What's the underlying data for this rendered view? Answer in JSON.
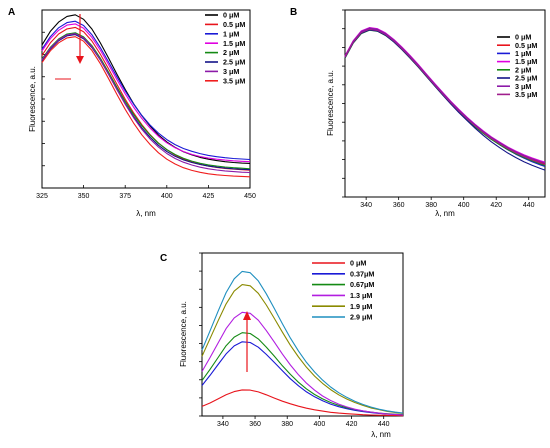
{
  "chart_data": [
    {
      "type": "line",
      "panel": "A",
      "xlabel": "λ, nm",
      "ylabel": "Fluorescence, a.u.",
      "xlim": [
        325,
        450
      ],
      "xticks": [
        325,
        350,
        375,
        400,
        425,
        450
      ],
      "ylim": [
        0,
        1
      ],
      "y_tick_labels": false,
      "legend_position": "top-right",
      "annotation": "arrow pointing down at the emission peak (~345 nm)",
      "x": [
        325,
        330,
        335,
        340,
        345,
        350,
        355,
        360,
        365,
        370,
        375,
        380,
        385,
        390,
        395,
        400,
        405,
        410,
        415,
        420,
        425,
        430,
        435,
        440,
        445,
        450
      ],
      "series": [
        {
          "name": "0 μM",
          "color": "#000000",
          "values": [
            0.804,
            0.88,
            0.932,
            0.964,
            0.973,
            0.948,
            0.893,
            0.817,
            0.73,
            0.64,
            0.554,
            0.475,
            0.406,
            0.347,
            0.298,
            0.259,
            0.228,
            0.204,
            0.186,
            0.172,
            0.162,
            0.154,
            0.148,
            0.143,
            0.14,
            0.138
          ]
        },
        {
          "name": "0.5 μM",
          "color": "#e8141c",
          "values": [
            0.745,
            0.815,
            0.865,
            0.894,
            0.902,
            0.878,
            0.826,
            0.753,
            0.669,
            0.583,
            0.499,
            0.423,
            0.356,
            0.299,
            0.252,
            0.215,
            0.185,
            0.163,
            0.146,
            0.133,
            0.123,
            0.116,
            0.11,
            0.106,
            0.103,
            0.1
          ]
        },
        {
          "name": "1 μM",
          "color": "#1a1ad6",
          "values": [
            0.78,
            0.85,
            0.9,
            0.929,
            0.937,
            0.913,
            0.861,
            0.79,
            0.708,
            0.625,
            0.545,
            0.472,
            0.408,
            0.353,
            0.308,
            0.272,
            0.244,
            0.222,
            0.206,
            0.193,
            0.183,
            0.176,
            0.17,
            0.166,
            0.163,
            0.16
          ]
        },
        {
          "name": "1.5 μM",
          "color": "#e000e0",
          "values": [
            0.77,
            0.838,
            0.886,
            0.915,
            0.922,
            0.898,
            0.846,
            0.775,
            0.693,
            0.609,
            0.529,
            0.455,
            0.391,
            0.336,
            0.29,
            0.254,
            0.226,
            0.205,
            0.189,
            0.177,
            0.168,
            0.162,
            0.157,
            0.153,
            0.15,
            0.148
          ]
        },
        {
          "name": "2 μM",
          "color": "#148a14",
          "values": [
            0.725,
            0.79,
            0.837,
            0.865,
            0.872,
            0.849,
            0.8,
            0.731,
            0.65,
            0.567,
            0.487,
            0.414,
            0.35,
            0.296,
            0.251,
            0.216,
            0.188,
            0.167,
            0.151,
            0.139,
            0.13,
            0.123,
            0.118,
            0.114,
            0.111,
            0.108
          ]
        },
        {
          "name": "2.5 μM",
          "color": "#141488",
          "values": [
            0.715,
            0.78,
            0.827,
            0.855,
            0.862,
            0.838,
            0.789,
            0.72,
            0.639,
            0.555,
            0.475,
            0.402,
            0.338,
            0.284,
            0.24,
            0.205,
            0.178,
            0.158,
            0.143,
            0.132,
            0.123,
            0.117,
            0.112,
            0.108,
            0.105,
            0.103
          ]
        },
        {
          "name": "3 μM",
          "color": "#8c1aa8",
          "values": [
            0.72,
            0.785,
            0.832,
            0.86,
            0.867,
            0.843,
            0.793,
            0.722,
            0.639,
            0.553,
            0.471,
            0.396,
            0.33,
            0.275,
            0.23,
            0.194,
            0.166,
            0.145,
            0.129,
            0.117,
            0.108,
            0.101,
            0.096,
            0.092,
            0.089,
            0.087
          ]
        },
        {
          "name": "3.5 μM",
          "color": "#f01e1e",
          "values": [
            0.705,
            0.77,
            0.816,
            0.843,
            0.85,
            0.825,
            0.773,
            0.7,
            0.614,
            0.526,
            0.442,
            0.366,
            0.299,
            0.244,
            0.198,
            0.162,
            0.135,
            0.114,
            0.099,
            0.088,
            0.08,
            0.074,
            0.07,
            0.067,
            0.065,
            0.063
          ]
        }
      ]
    },
    {
      "type": "line",
      "panel": "B",
      "xlabel": "λ, nm",
      "ylabel": "Fluorescence, a.u.",
      "xlim": [
        327,
        450
      ],
      "xticks": [
        340,
        360,
        380,
        400,
        420,
        440
      ],
      "ylim": [
        0,
        1
      ],
      "y_tick_labels": false,
      "legend_position": "top-right",
      "x": [
        327,
        332,
        337,
        342,
        347,
        352,
        357,
        362,
        367,
        372,
        377,
        382,
        387,
        392,
        397,
        402,
        407,
        412,
        417,
        422,
        427,
        432,
        437,
        442,
        447,
        450
      ],
      "series": [
        {
          "name": "0 μM",
          "color": "#000000",
          "values": [
            0.745,
            0.825,
            0.877,
            0.895,
            0.889,
            0.866,
            0.832,
            0.791,
            0.746,
            0.698,
            0.648,
            0.598,
            0.549,
            0.502,
            0.458,
            0.416,
            0.378,
            0.343,
            0.311,
            0.283,
            0.257,
            0.234,
            0.214,
            0.196,
            0.18,
            0.171
          ]
        },
        {
          "name": "0.5 μM",
          "color": "#e8141c",
          "values": [
            0.75,
            0.83,
            0.883,
            0.9,
            0.895,
            0.872,
            0.838,
            0.797,
            0.752,
            0.704,
            0.654,
            0.604,
            0.555,
            0.508,
            0.464,
            0.422,
            0.384,
            0.349,
            0.317,
            0.289,
            0.263,
            0.24,
            0.22,
            0.202,
            0.186,
            0.177
          ]
        },
        {
          "name": "1 μM",
          "color": "#1a1ad6",
          "values": [
            0.748,
            0.828,
            0.88,
            0.898,
            0.893,
            0.869,
            0.835,
            0.794,
            0.749,
            0.701,
            0.651,
            0.601,
            0.551,
            0.504,
            0.46,
            0.418,
            0.379,
            0.343,
            0.31,
            0.28,
            0.253,
            0.229,
            0.208,
            0.189,
            0.172,
            0.163
          ]
        },
        {
          "name": "1.5 μM",
          "color": "#e000e0",
          "values": [
            0.755,
            0.835,
            0.888,
            0.906,
            0.9,
            0.877,
            0.843,
            0.802,
            0.757,
            0.709,
            0.659,
            0.609,
            0.56,
            0.513,
            0.469,
            0.427,
            0.389,
            0.354,
            0.322,
            0.294,
            0.268,
            0.246,
            0.226,
            0.209,
            0.194,
            0.186
          ]
        },
        {
          "name": "2 μM",
          "color": "#148a14",
          "values": [
            0.742,
            0.822,
            0.874,
            0.892,
            0.886,
            0.863,
            0.829,
            0.788,
            0.743,
            0.695,
            0.645,
            0.595,
            0.546,
            0.499,
            0.455,
            0.413,
            0.375,
            0.34,
            0.308,
            0.28,
            0.254,
            0.231,
            0.211,
            0.193,
            0.177,
            0.168
          ]
        },
        {
          "name": "2.5 μM",
          "color": "#141488",
          "values": [
            0.745,
            0.824,
            0.876,
            0.893,
            0.887,
            0.864,
            0.83,
            0.789,
            0.744,
            0.696,
            0.646,
            0.596,
            0.546,
            0.498,
            0.452,
            0.409,
            0.368,
            0.33,
            0.295,
            0.264,
            0.236,
            0.211,
            0.189,
            0.17,
            0.153,
            0.144
          ]
        },
        {
          "name": "3 μM",
          "color": "#8c1aa8",
          "values": [
            0.752,
            0.832,
            0.885,
            0.903,
            0.897,
            0.874,
            0.84,
            0.799,
            0.754,
            0.706,
            0.656,
            0.606,
            0.557,
            0.51,
            0.466,
            0.424,
            0.386,
            0.351,
            0.319,
            0.291,
            0.265,
            0.242,
            0.222,
            0.205,
            0.19,
            0.182
          ]
        },
        {
          "name": "3.5 μM",
          "color": "#a01e8c",
          "values": [
            0.747,
            0.827,
            0.879,
            0.897,
            0.891,
            0.868,
            0.834,
            0.793,
            0.748,
            0.7,
            0.65,
            0.6,
            0.551,
            0.504,
            0.46,
            0.418,
            0.38,
            0.345,
            0.313,
            0.285,
            0.259,
            0.236,
            0.216,
            0.198,
            0.182,
            0.173
          ]
        }
      ]
    },
    {
      "type": "line",
      "panel": "C",
      "xlabel": "λ, nm",
      "ylabel": "Fluorescence, a.u.",
      "xlim": [
        327,
        452
      ],
      "xticks": [
        340,
        360,
        380,
        400,
        420,
        440
      ],
      "ylim": [
        0,
        1
      ],
      "y_tick_labels": false,
      "legend_position": "top-right",
      "annotation": "arrow pointing up at the emission peak (~355 nm)",
      "x": [
        327,
        332,
        337,
        342,
        347,
        352,
        357,
        362,
        367,
        372,
        377,
        382,
        387,
        392,
        397,
        402,
        407,
        412,
        417,
        422,
        427,
        432,
        437,
        442,
        447,
        452
      ],
      "series": [
        {
          "name": "0 μM",
          "color": "#e8141c",
          "values": [
            0.059,
            0.08,
            0.105,
            0.13,
            0.15,
            0.16,
            0.159,
            0.148,
            0.13,
            0.11,
            0.091,
            0.075,
            0.06,
            0.048,
            0.038,
            0.03,
            0.023,
            0.018,
            0.014,
            0.011,
            0.008,
            0.006,
            0.005,
            0.004,
            0.003,
            0.002
          ]
        },
        {
          "name": "0.37μM",
          "color": "#1a1ad6",
          "values": [
            0.187,
            0.249,
            0.316,
            0.381,
            0.43,
            0.455,
            0.451,
            0.422,
            0.378,
            0.328,
            0.277,
            0.228,
            0.185,
            0.148,
            0.118,
            0.093,
            0.073,
            0.057,
            0.045,
            0.035,
            0.027,
            0.021,
            0.016,
            0.012,
            0.009,
            0.007
          ]
        },
        {
          "name": "0.67μM",
          "color": "#148a14",
          "values": [
            0.217,
            0.286,
            0.359,
            0.431,
            0.484,
            0.511,
            0.506,
            0.473,
            0.423,
            0.366,
            0.308,
            0.255,
            0.207,
            0.166,
            0.132,
            0.105,
            0.083,
            0.065,
            0.051,
            0.04,
            0.031,
            0.024,
            0.018,
            0.014,
            0.011,
            0.008
          ]
        },
        {
          "name": "1.3 μM",
          "color": "#b21ee0",
          "values": [
            0.273,
            0.358,
            0.448,
            0.536,
            0.602,
            0.636,
            0.63,
            0.588,
            0.524,
            0.453,
            0.38,
            0.313,
            0.253,
            0.201,
            0.158,
            0.123,
            0.095,
            0.073,
            0.056,
            0.042,
            0.032,
            0.024,
            0.018,
            0.013,
            0.01,
            0.007
          ]
        },
        {
          "name": "1.9 μM",
          "color": "#8a8a00",
          "values": [
            0.366,
            0.474,
            0.584,
            0.688,
            0.766,
            0.806,
            0.799,
            0.753,
            0.681,
            0.598,
            0.514,
            0.434,
            0.362,
            0.299,
            0.245,
            0.2,
            0.162,
            0.13,
            0.104,
            0.083,
            0.065,
            0.05,
            0.039,
            0.029,
            0.022,
            0.016
          ]
        },
        {
          "name": "2.9 μM",
          "color": "#1f8fbf",
          "values": [
            0.404,
            0.522,
            0.643,
            0.757,
            0.842,
            0.887,
            0.879,
            0.829,
            0.75,
            0.659,
            0.566,
            0.478,
            0.398,
            0.329,
            0.27,
            0.22,
            0.178,
            0.143,
            0.115,
            0.091,
            0.071,
            0.055,
            0.042,
            0.032,
            0.024,
            0.018
          ]
        }
      ]
    }
  ]
}
